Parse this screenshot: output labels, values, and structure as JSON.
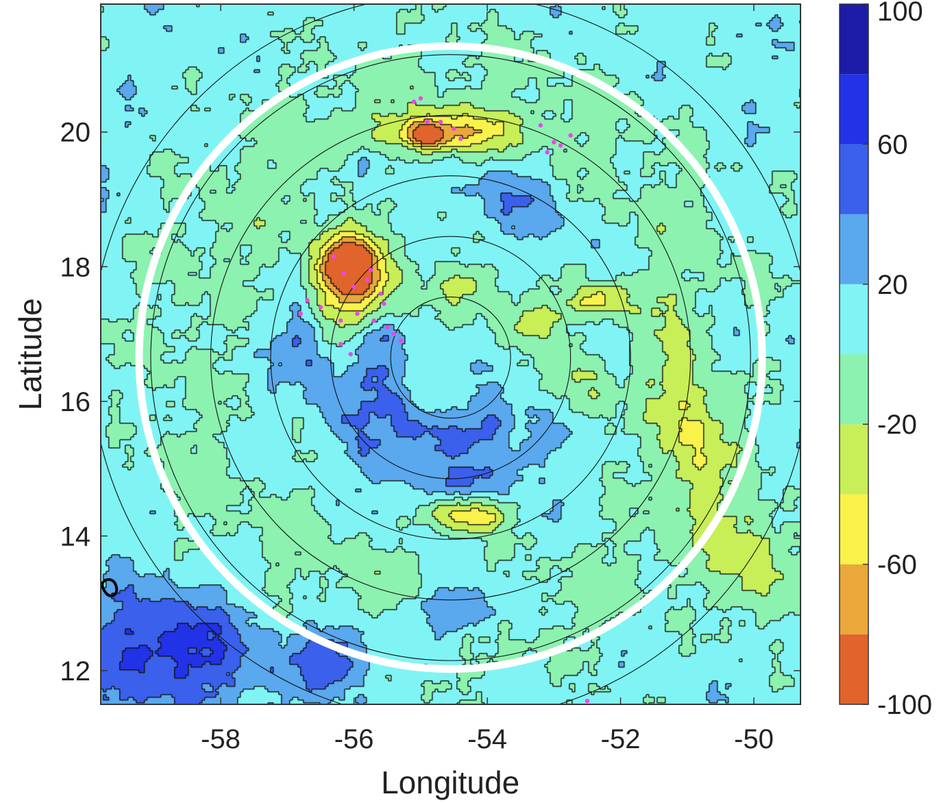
{
  "chart_data": {
    "type": "heatmap",
    "subtype": "filled contour map",
    "title": "",
    "xlabel": "Longitude",
    "ylabel": "Latitude",
    "xlim": [
      -59.8,
      -49.3
    ],
    "ylim": [
      11.5,
      21.9
    ],
    "xticks": [
      -58,
      -56,
      -54,
      -52,
      -50
    ],
    "yticks": [
      12,
      14,
      16,
      18,
      20
    ],
    "xtick_labels": [
      "-58",
      "-56",
      "-54",
      "-52",
      "-50"
    ],
    "ytick_labels": [
      "12",
      "14",
      "16",
      "18",
      "20"
    ],
    "grid": false,
    "colorbar": {
      "range": [
        -100,
        100
      ],
      "levels": [
        -100,
        -80,
        -60,
        -40,
        -20,
        0,
        20,
        40,
        60,
        80,
        100
      ],
      "tick_values": [
        -100,
        -60,
        -20,
        20,
        60,
        100
      ],
      "tick_labels": [
        "-100",
        "-60",
        "-20",
        "20",
        "60",
        "100"
      ],
      "colors": [
        "#e0642c",
        "#eaa83a",
        "#f9f24a",
        "#c8ee58",
        "#8cf2b0",
        "#80f4f4",
        "#5aa8ee",
        "#3a60ec",
        "#2232e6",
        "#1c1ca8"
      ]
    },
    "center": {
      "lon": -54.55,
      "lat": 16.65
    },
    "white_circle_radius_deg": 4.65,
    "range_rings_radius_deg": [
      0.9,
      1.8,
      2.7,
      3.6,
      4.5,
      5.4
    ],
    "background_value": 10,
    "features": [
      {
        "kind": "blob",
        "lon": -56.0,
        "lat": 17.8,
        "r_lon": 0.65,
        "r_lat": 0.75,
        "value": -72,
        "rotate": -15
      },
      {
        "kind": "blob",
        "lon": -56.1,
        "lat": 18.05,
        "r_lon": 0.35,
        "r_lat": 0.35,
        "value": -78,
        "rotate": 0
      },
      {
        "kind": "blob",
        "lon": -54.5,
        "lat": 20.0,
        "r_lon": 1.1,
        "r_lat": 0.35,
        "value": -45,
        "rotate": 0
      },
      {
        "kind": "blob",
        "lon": -54.9,
        "lat": 19.95,
        "r_lon": 0.3,
        "r_lat": 0.18,
        "value": -65,
        "rotate": 0
      },
      {
        "kind": "blob",
        "lon": -54.3,
        "lat": 14.3,
        "r_lon": 0.55,
        "r_lat": 0.25,
        "value": -55,
        "rotate": 0
      },
      {
        "kind": "blob",
        "lon": -53.3,
        "lat": 17.2,
        "r_lon": 0.55,
        "r_lat": 0.35,
        "value": -32,
        "rotate": 0
      },
      {
        "kind": "blob",
        "lon": -52.3,
        "lat": 17.5,
        "r_lon": 0.45,
        "r_lat": 0.25,
        "value": -45,
        "rotate": 0
      },
      {
        "kind": "blob",
        "lon": -51.0,
        "lat": 15.6,
        "r_lon": 0.5,
        "r_lat": 1.4,
        "value": -28,
        "rotate": 10
      },
      {
        "kind": "blob",
        "lon": -52.6,
        "lat": 16.2,
        "r_lon": 0.45,
        "r_lat": 0.6,
        "value": -25,
        "rotate": 0
      },
      {
        "kind": "blob",
        "lon": -54.3,
        "lat": 17.7,
        "r_lon": 0.5,
        "r_lat": 0.35,
        "value": -28,
        "rotate": 0
      },
      {
        "kind": "blob",
        "lon": -50.0,
        "lat": 13.6,
        "r_lon": 0.6,
        "r_lat": 0.9,
        "value": -30,
        "rotate": 0
      },
      {
        "kind": "blob",
        "lon": -53.6,
        "lat": 19.0,
        "r_lon": 0.8,
        "r_lat": 0.45,
        "value": 35,
        "rotate": -20
      },
      {
        "kind": "blob",
        "lon": -56.8,
        "lat": 16.9,
        "r_lon": 0.35,
        "r_lat": 0.55,
        "value": 42,
        "rotate": 0
      },
      {
        "kind": "blob",
        "lon": -58.8,
        "lat": 12.3,
        "r_lon": 1.4,
        "r_lat": 0.9,
        "value": 70,
        "rotate": 0
      },
      {
        "kind": "blob",
        "lon": -54.4,
        "lat": 12.9,
        "r_lon": 0.7,
        "r_lat": 0.4,
        "value": 55,
        "rotate": 0
      },
      {
        "kind": "blob",
        "lon": -56.3,
        "lat": 12.2,
        "r_lon": 0.7,
        "r_lat": 0.5,
        "value": 58,
        "rotate": 0
      },
      {
        "kind": "blob",
        "lon": -50.3,
        "lat": 16.8,
        "r_lon": 0.35,
        "r_lat": 0.5,
        "value": 35,
        "rotate": 0
      },
      {
        "kind": "blob",
        "lon": -55.8,
        "lat": 19.5,
        "r_lon": 0.35,
        "r_lat": 0.35,
        "value": 40,
        "rotate": 0
      },
      {
        "kind": "arc",
        "radius_deg": 1.15,
        "from_deg": 170,
        "to_deg": 300,
        "width_deg": 0.35,
        "value": 45
      },
      {
        "kind": "arc",
        "radius_deg": 1.85,
        "from_deg": 195,
        "to_deg": 320,
        "width_deg": 0.3,
        "value": 35
      }
    ],
    "lightning_points": [
      {
        "lon": -56.15,
        "lat": 17.9
      },
      {
        "lon": -56.0,
        "lat": 17.7
      },
      {
        "lon": -55.8,
        "lat": 17.8
      },
      {
        "lon": -55.6,
        "lat": 17.6
      },
      {
        "lon": -55.95,
        "lat": 17.3
      },
      {
        "lon": -55.7,
        "lat": 17.2
      },
      {
        "lon": -55.5,
        "lat": 17.1
      },
      {
        "lon": -55.4,
        "lat": 17.0
      },
      {
        "lon": -56.2,
        "lat": 17.2
      },
      {
        "lon": -56.5,
        "lat": 17.4
      },
      {
        "lon": -56.7,
        "lat": 17.5
      },
      {
        "lon": -56.8,
        "lat": 17.3
      },
      {
        "lon": -56.3,
        "lat": 18.15
      },
      {
        "lon": -55.75,
        "lat": 17.95
      },
      {
        "lon": -56.2,
        "lat": 16.85
      },
      {
        "lon": -56.05,
        "lat": 16.7
      },
      {
        "lon": -55.3,
        "lat": 16.9
      },
      {
        "lon": -55.55,
        "lat": 17.45
      },
      {
        "lon": -55.0,
        "lat": 20.5
      },
      {
        "lon": -55.1,
        "lat": 20.45
      },
      {
        "lon": -54.9,
        "lat": 20.15
      },
      {
        "lon": -54.7,
        "lat": 20.15
      },
      {
        "lon": -54.5,
        "lat": 20.05
      },
      {
        "lon": -54.4,
        "lat": 19.9
      },
      {
        "lon": -53.2,
        "lat": 20.1
      },
      {
        "lon": -53.0,
        "lat": 19.85
      },
      {
        "lon": -52.9,
        "lat": 19.8
      },
      {
        "lon": -52.75,
        "lat": 19.95
      },
      {
        "lon": -53.1,
        "lat": 19.7
      },
      {
        "lon": -52.5,
        "lat": 11.55
      }
    ],
    "annotations": [
      {
        "text": "",
        "note": "small black closed contour near -59.7, 13.2"
      }
    ]
  }
}
